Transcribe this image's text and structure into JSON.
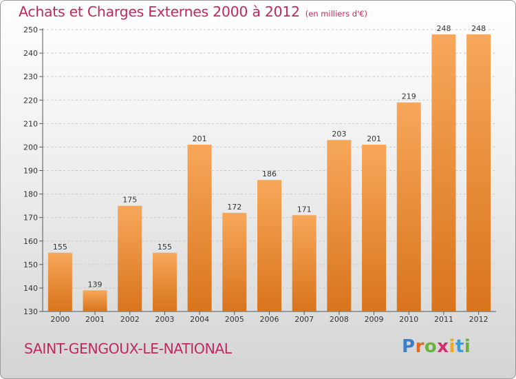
{
  "header": {
    "title": "Achats et Charges Externes 2000 à 2012",
    "unit": "(en milliers d'€)"
  },
  "footer": {
    "commune": "SAINT-GENGOUX-LE-NATIONAL",
    "logo": {
      "p": "P",
      "r": "r",
      "o": "o",
      "x": "x",
      "i1": "i",
      "t": "t",
      "i2": "i"
    }
  },
  "colors": {
    "title": "#c0295f",
    "bar_top": "#f7a75a",
    "bar_bottom": "#d9741c",
    "gridline": "#c8c8c8"
  },
  "chart_data": {
    "type": "bar",
    "title": "Achats et Charges Externes 2000 à 2012",
    "xlabel": "",
    "ylabel": "",
    "categories": [
      "2000",
      "2001",
      "2002",
      "2003",
      "2004",
      "2005",
      "2006",
      "2007",
      "2008",
      "2009",
      "2010",
      "2011",
      "2012"
    ],
    "values": [
      155,
      139,
      175,
      155,
      201,
      172,
      186,
      171,
      203,
      201,
      219,
      248,
      248
    ],
    "ylim": [
      130,
      250
    ],
    "yticks": [
      130,
      140,
      150,
      160,
      170,
      180,
      190,
      200,
      210,
      220,
      230,
      240,
      250
    ],
    "grid": true,
    "legend": "none"
  }
}
